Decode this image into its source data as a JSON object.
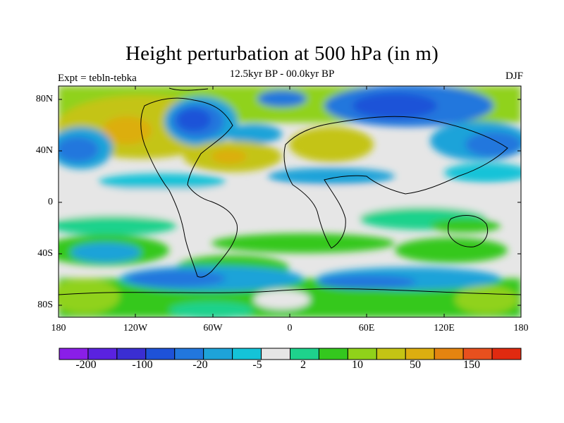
{
  "title": "Height perturbation at 500 hPa (in m)",
  "experiment": "Expt = tebln-tebka",
  "period": "12.5kyr BP - 00.0kyr BP",
  "season": "DJF",
  "map": {
    "projection": "cylindrical-equidistant",
    "lon_range": [
      -180,
      180
    ],
    "lat_range": [
      -90,
      90
    ],
    "lat_ticks": [
      "80N",
      "40N",
      "0",
      "40S",
      "80S"
    ],
    "lon_ticks": [
      "180",
      "120W",
      "60W",
      "0",
      "60E",
      "120E",
      "180"
    ]
  },
  "colorbar": {
    "labels": [
      "-200",
      "-100",
      "-20",
      "-5",
      "2",
      "10",
      "50",
      "150"
    ],
    "colors": [
      "#8a1ee8",
      "#5a22e0",
      "#3a2ed2",
      "#1e52d8",
      "#2277dd",
      "#1ea3d9",
      "#14c3d8",
      "#e6e6e6",
      "#1ed28c",
      "#34c81e",
      "#90d21a",
      "#c4c414",
      "#dcae10",
      "#e48410",
      "#e8501e",
      "#e02a10"
    ]
  }
}
